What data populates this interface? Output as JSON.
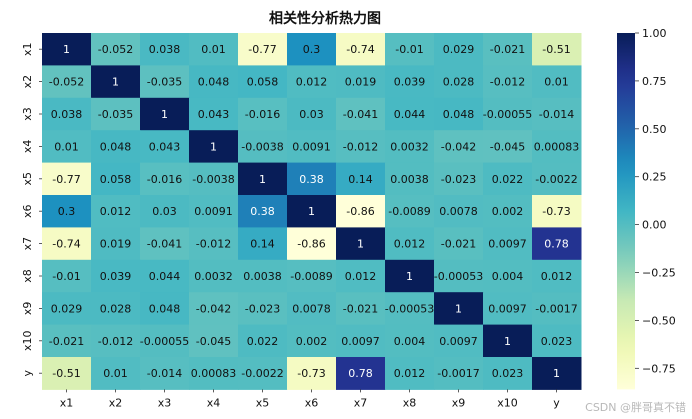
{
  "chart_data": {
    "type": "heatmap",
    "title": "相关性分析热力图",
    "x_labels": [
      "x1",
      "x2",
      "x3",
      "x4",
      "x5",
      "x6",
      "x7",
      "x8",
      "x9",
      "x10",
      "y"
    ],
    "y_labels": [
      "x1",
      "x2",
      "x3",
      "x4",
      "x5",
      "x6",
      "x7",
      "x8",
      "x9",
      "x10",
      "y"
    ],
    "cells": [
      [
        "1",
        "-0.052",
        "0.038",
        "0.01",
        "-0.77",
        "0.3",
        "-0.74",
        "-0.01",
        "0.029",
        "-0.021",
        "-0.51"
      ],
      [
        "-0.052",
        "1",
        "-0.035",
        "0.048",
        "0.058",
        "0.012",
        "0.019",
        "0.039",
        "0.028",
        "-0.012",
        "0.01"
      ],
      [
        "0.038",
        "-0.035",
        "1",
        "0.043",
        "-0.016",
        "0.03",
        "-0.041",
        "0.044",
        "0.048",
        "-0.00055",
        "-0.014"
      ],
      [
        "0.01",
        "0.048",
        "0.043",
        "1",
        "-0.0038",
        "0.0091",
        "-0.012",
        "0.0032",
        "-0.042",
        "-0.045",
        "0.00083"
      ],
      [
        "-0.77",
        "0.058",
        "-0.016",
        "-0.0038",
        "1",
        "0.38",
        "0.14",
        "0.0038",
        "-0.023",
        "0.022",
        "-0.0022"
      ],
      [
        "0.3",
        "0.012",
        "0.03",
        "0.0091",
        "0.38",
        "1",
        "-0.86",
        "-0.0089",
        "0.0078",
        "0.002",
        "-0.73"
      ],
      [
        "-0.74",
        "0.019",
        "-0.041",
        "-0.012",
        "0.14",
        "-0.86",
        "1",
        "0.012",
        "-0.021",
        "0.0097",
        "0.78"
      ],
      [
        "-0.01",
        "0.039",
        "0.044",
        "0.0032",
        "0.0038",
        "-0.0089",
        "0.012",
        "1",
        "-0.00053",
        "0.004",
        "0.012"
      ],
      [
        "0.029",
        "0.028",
        "0.048",
        "-0.042",
        "-0.023",
        "0.0078",
        "-0.021",
        "-0.00053",
        "1",
        "0.0097",
        "-0.0017"
      ],
      [
        "-0.021",
        "-0.012",
        "-0.00055",
        "-0.045",
        "0.022",
        "0.002",
        "0.0097",
        "0.004",
        "0.0097",
        "1",
        "0.023"
      ],
      [
        "-0.51",
        "0.01",
        "-0.014",
        "0.00083",
        "-0.0022",
        "-0.73",
        "0.78",
        "0.012",
        "-0.0017",
        "0.023",
        "1"
      ]
    ],
    "colorbar": {
      "ticks": [
        "1.00",
        "0.75",
        "0.50",
        "0.25",
        "0.00",
        "−0.25",
        "−0.50",
        "−0.75"
      ],
      "tick_values": [
        1.0,
        0.75,
        0.5,
        0.25,
        0.0,
        -0.25,
        -0.5,
        -0.75
      ],
      "range": [
        -0.86,
        1.0
      ],
      "colormap": "YlGnBu"
    }
  },
  "watermark": "CSDN @胖哥真不错"
}
